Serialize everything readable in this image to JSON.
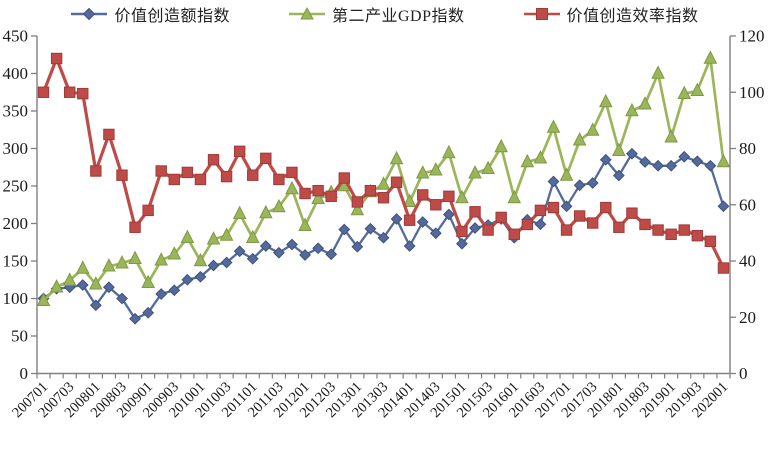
{
  "chart_data": {
    "type": "line",
    "title": "",
    "grid": false,
    "legend_position": "top",
    "axis_color": "#808080",
    "text_color": "#1a1a1a",
    "x": [
      "200701",
      "200702",
      "200703",
      "200704",
      "200801",
      "200802",
      "200803",
      "200804",
      "200901",
      "200902",
      "200903",
      "200904",
      "201001",
      "201002",
      "201003",
      "201004",
      "201101",
      "201102",
      "201103",
      "201104",
      "201201",
      "201202",
      "201203",
      "201204",
      "201301",
      "201302",
      "201303",
      "201304",
      "201401",
      "201402",
      "201403",
      "201404",
      "201501",
      "201502",
      "201503",
      "201504",
      "201601",
      "201602",
      "201603",
      "201604",
      "201701",
      "201702",
      "201703",
      "201704",
      "201801",
      "201802",
      "201803",
      "201804",
      "201901",
      "201902",
      "201903",
      "201904",
      "202001"
    ],
    "x_tick_labels": [
      "200701",
      "200703",
      "200801",
      "200803",
      "200901",
      "200903",
      "201001",
      "201003",
      "201101",
      "201103",
      "201201",
      "201203",
      "201301",
      "201303",
      "201401",
      "201403",
      "201501",
      "201503",
      "201601",
      "201603",
      "201701",
      "201703",
      "201801",
      "201803",
      "201901",
      "201903",
      "202001"
    ],
    "left_axis": {
      "min": 0,
      "max": 450,
      "ticks": [
        0,
        50,
        100,
        150,
        200,
        250,
        300,
        350,
        400,
        450
      ]
    },
    "right_axis": {
      "min": 0,
      "max": 120,
      "ticks": [
        0,
        20,
        40,
        60,
        80,
        100,
        120
      ]
    },
    "series": [
      {
        "name": "价值创造额指数",
        "axis": "left",
        "marker": "diamond",
        "color": "#546A9D",
        "edge": "#3E5277",
        "values": [
          100,
          113,
          115,
          118,
          91,
          115,
          100,
          73,
          81,
          106,
          111,
          125,
          129,
          144,
          148,
          163,
          153,
          170,
          161,
          172,
          158,
          167,
          159,
          192,
          169,
          193,
          181,
          206,
          170,
          202,
          187,
          212,
          173,
          194,
          198,
          206,
          181,
          205,
          199,
          256,
          223,
          251,
          254,
          285,
          264,
          293,
          282,
          277,
          277,
          289,
          283,
          277,
          223
        ]
      },
      {
        "name": "第二产业GDP指数",
        "axis": "left",
        "marker": "triangle",
        "color": "#9BB55A",
        "edge": "#7E9A43",
        "values": [
          97,
          115,
          124,
          140,
          119,
          143,
          147,
          153,
          121,
          151,
          159,
          181,
          150,
          179,
          184,
          213,
          181,
          214,
          222,
          246,
          197,
          233,
          241,
          250,
          218,
          242,
          252,
          286,
          229,
          267,
          271,
          294,
          234,
          267,
          273,
          302,
          234,
          282,
          287,
          328,
          264,
          311,
          324,
          362,
          297,
          350,
          359,
          400,
          315,
          373,
          377,
          420,
          282
        ]
      },
      {
        "name": "价值创造效率指数",
        "axis": "right",
        "marker": "square",
        "color": "#BE4B48",
        "edge": "#9E3B39",
        "values": [
          100,
          112,
          100,
          99.5,
          72,
          85,
          70.5,
          52,
          58,
          72,
          69,
          71.5,
          69,
          76,
          70,
          79,
          70.5,
          76.5,
          69,
          71.5,
          64,
          65,
          63,
          69.5,
          61,
          65,
          62.5,
          68,
          54.5,
          63.5,
          60,
          63,
          50.5,
          57.5,
          51,
          55.5,
          49.5,
          53,
          58,
          59,
          51,
          56,
          53.5,
          59,
          52,
          57,
          53,
          51,
          49.5,
          51,
          49,
          47,
          37.5
        ]
      }
    ]
  }
}
